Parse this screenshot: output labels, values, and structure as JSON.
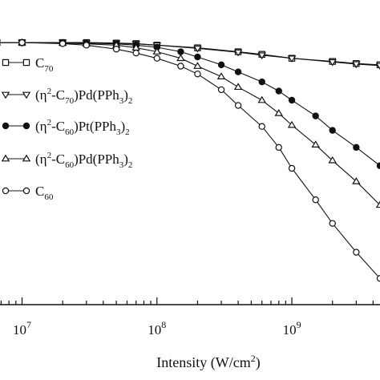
{
  "chart_data": {
    "type": "line",
    "title": "",
    "xlabel": "Intensity (W/cm²)",
    "xlabel_base": "Intensity (W/cm",
    "xlabel_sup": "2",
    "xlabel_tail": ")",
    "ylabel": "",
    "x_scale": "log",
    "xlim": [
      6500000.0,
      4500000000.0
    ],
    "ylim": [
      0.0,
      1.04
    ],
    "grid": false,
    "legend_position": "left",
    "x_ticks": [
      {
        "value": 10000000.0,
        "base": "10",
        "exp": "7"
      },
      {
        "value": 100000000.0,
        "base": "10",
        "exp": "8"
      },
      {
        "value": 1000000000.0,
        "base": "10",
        "exp": "9"
      }
    ],
    "series": [
      {
        "name": "C70",
        "label_parts": [
          {
            "t": "C"
          },
          {
            "t": "70",
            "sub": true
          }
        ],
        "marker": "square-open",
        "x": [
          6500000.0,
          10000000.0,
          20000000.0,
          30000000.0,
          50000000.0,
          70000000.0,
          100000000.0,
          200000000.0,
          400000000.0,
          600000000.0,
          1000000000.0,
          2000000000.0,
          3000000000.0,
          4500000000.0
        ],
        "y": [
          1.0,
          1.0,
          1.0,
          1.0,
          0.998,
          0.996,
          0.99,
          0.98,
          0.965,
          0.955,
          0.94,
          0.928,
          0.92,
          0.915
        ]
      },
      {
        "name": "(η2-C70)Pd(PPh3)2",
        "label_parts": [
          {
            "t": "(η"
          },
          {
            "t": "2",
            "sup": true
          },
          {
            "t": "-C"
          },
          {
            "t": "70",
            "sub": true
          },
          {
            "t": ")Pd(PPh"
          },
          {
            "t": "3",
            "sub": true
          },
          {
            "t": ")"
          },
          {
            "t": "2",
            "sub": true
          }
        ],
        "marker": "triangle-down-open",
        "x": [
          6500000.0,
          10000000.0,
          20000000.0,
          30000000.0,
          50000000.0,
          70000000.0,
          100000000.0,
          200000000.0,
          400000000.0,
          600000000.0,
          1000000000.0,
          2000000000.0,
          3000000000.0,
          4500000000.0
        ],
        "y": [
          1.0,
          1.0,
          1.0,
          0.998,
          0.997,
          0.995,
          0.99,
          0.978,
          0.963,
          0.952,
          0.94,
          0.926,
          0.918,
          0.912
        ]
      },
      {
        "name": "(η2-C60)Pt(PPh3)2",
        "label_parts": [
          {
            "t": "(η"
          },
          {
            "t": "2",
            "sup": true
          },
          {
            "t": "-C"
          },
          {
            "t": "60",
            "sub": true
          },
          {
            "t": ")Pt(PPh"
          },
          {
            "t": "3",
            "sub": true
          },
          {
            "t": ")"
          },
          {
            "t": "2",
            "sub": true
          }
        ],
        "marker": "circle-filled",
        "x": [
          6500000.0,
          10000000.0,
          20000000.0,
          30000000.0,
          50000000.0,
          70000000.0,
          100000000.0,
          150000000.0,
          200000000.0,
          300000000.0,
          400000000.0,
          600000000.0,
          800000000.0,
          1000000000.0,
          1500000000.0,
          2000000000.0,
          3000000000.0,
          4500000000.0
        ],
        "y": [
          1.0,
          1.0,
          1.0,
          0.998,
          0.995,
          0.99,
          0.982,
          0.965,
          0.945,
          0.915,
          0.888,
          0.85,
          0.815,
          0.78,
          0.72,
          0.665,
          0.6,
          0.53
        ]
      },
      {
        "name": "(η2-C60)Pd(PPh3)2",
        "label_parts": [
          {
            "t": "(η"
          },
          {
            "t": "2",
            "sup": true
          },
          {
            "t": "-C"
          },
          {
            "t": "60",
            "sub": true
          },
          {
            "t": ")Pd(PPh"
          },
          {
            "t": "3",
            "sub": true
          },
          {
            "t": ")"
          },
          {
            "t": "2",
            "sub": true
          }
        ],
        "marker": "triangle-up-open",
        "x": [
          6500000.0,
          10000000.0,
          20000000.0,
          30000000.0,
          50000000.0,
          70000000.0,
          100000000.0,
          150000000.0,
          200000000.0,
          300000000.0,
          400000000.0,
          600000000.0,
          800000000.0,
          1000000000.0,
          1500000000.0,
          2000000000.0,
          3000000000.0,
          4500000000.0
        ],
        "y": [
          1.0,
          1.0,
          0.998,
          0.995,
          0.99,
          0.98,
          0.965,
          0.94,
          0.91,
          0.87,
          0.83,
          0.78,
          0.73,
          0.685,
          0.61,
          0.55,
          0.47,
          0.38
        ]
      },
      {
        "name": "C60",
        "label_parts": [
          {
            "t": "C"
          },
          {
            "t": "60",
            "sub": true
          }
        ],
        "marker": "circle-open",
        "x": [
          6500000.0,
          10000000.0,
          20000000.0,
          30000000.0,
          50000000.0,
          70000000.0,
          100000000.0,
          150000000.0,
          200000000.0,
          300000000.0,
          400000000.0,
          600000000.0,
          800000000.0,
          1000000000.0,
          1500000000.0,
          2000000000.0,
          3000000000.0,
          4500000000.0
        ],
        "y": [
          1.0,
          1.0,
          0.996,
          0.99,
          0.975,
          0.96,
          0.94,
          0.91,
          0.88,
          0.82,
          0.76,
          0.68,
          0.6,
          0.52,
          0.4,
          0.31,
          0.2,
          0.1
        ]
      }
    ]
  }
}
